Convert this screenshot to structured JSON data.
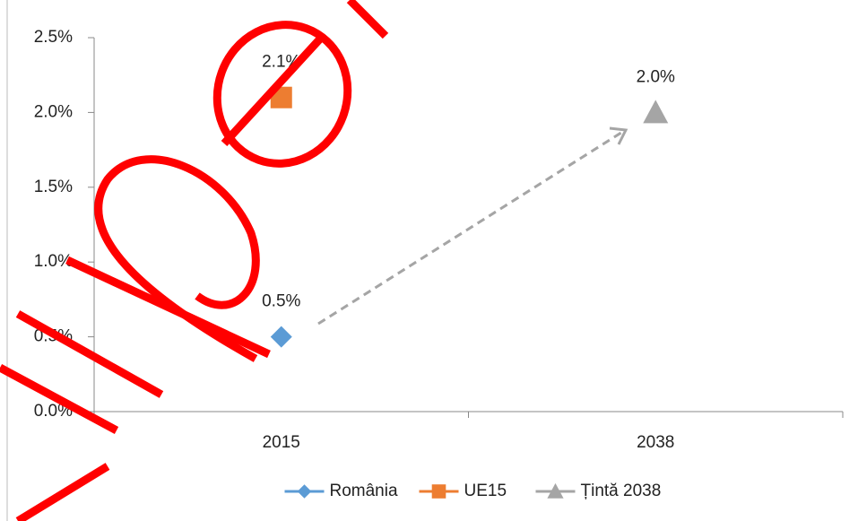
{
  "chart_data": {
    "type": "line",
    "categories": [
      "2015",
      "2038"
    ],
    "series": [
      {
        "name": "România",
        "color": "#5b9bd5",
        "marker": "diamond",
        "values": [
          0.5,
          null
        ],
        "value_labels": [
          "0.5%",
          null
        ]
      },
      {
        "name": "UE15",
        "color": "#ed7d31",
        "marker": "square",
        "values": [
          2.1,
          null
        ],
        "value_labels": [
          "2.1%",
          null
        ]
      },
      {
        "name": "Țintă 2038",
        "color": "#a5a5a5",
        "marker": "triangle",
        "values": [
          null,
          2.0
        ],
        "value_labels": [
          null,
          "2.0%"
        ]
      }
    ],
    "ylim": [
      0,
      2.5
    ],
    "yticks": [
      {
        "value": 0,
        "label": "0.0%"
      },
      {
        "value": 0.5,
        "label": "0.5%"
      },
      {
        "value": 1,
        "label": "1.0%"
      },
      {
        "value": 1.5,
        "label": "1.5%"
      },
      {
        "value": 2,
        "label": "2.0%"
      },
      {
        "value": 2.5,
        "label": "2.5%"
      }
    ],
    "grid": false,
    "legend": "bottom"
  }
}
